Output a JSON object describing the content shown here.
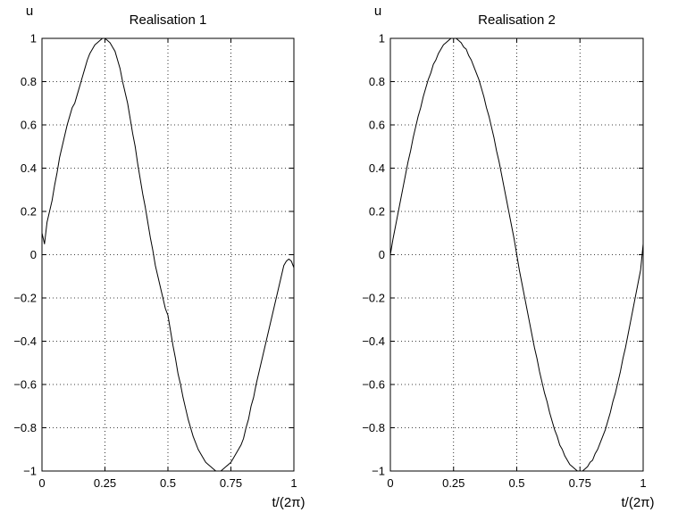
{
  "chart_data": [
    {
      "type": "line",
      "title": "Realisation 1",
      "xlabel": "t/(2π)",
      "ylabel": "u",
      "xlim": [
        0,
        1
      ],
      "ylim": [
        -1,
        1
      ],
      "x_ticks": [
        0,
        0.25,
        0.5,
        0.75,
        1
      ],
      "x_tick_labels": [
        "0",
        "0.25",
        "0.5",
        "0.75",
        "1"
      ],
      "y_ticks": [
        -1,
        -0.8,
        -0.6,
        -0.4,
        -0.2,
        0,
        0.2,
        0.4,
        0.6,
        0.8,
        1
      ],
      "y_tick_labels": [
        "−1",
        "−0.8",
        "−0.6",
        "−0.4",
        "−0.2",
        "0",
        "0.2",
        "0.4",
        "0.6",
        "0.8",
        "1"
      ],
      "grid": true,
      "series": [
        {
          "x": [
            0,
            0.01,
            0.02,
            0.03,
            0.04,
            0.05,
            0.06,
            0.07,
            0.08,
            0.09,
            0.1,
            0.11,
            0.12,
            0.13,
            0.14,
            0.15,
            0.16,
            0.17,
            0.18,
            0.19,
            0.2,
            0.21,
            0.22,
            0.23,
            0.24,
            0.25,
            0.26,
            0.27,
            0.28,
            0.29,
            0.3,
            0.31,
            0.32,
            0.33,
            0.34,
            0.35,
            0.36,
            0.37,
            0.38,
            0.39,
            0.4,
            0.41,
            0.42,
            0.43,
            0.44,
            0.45,
            0.46,
            0.47,
            0.48,
            0.49,
            0.5,
            0.51,
            0.52,
            0.53,
            0.54,
            0.55,
            0.56,
            0.57,
            0.58,
            0.59,
            0.6,
            0.61,
            0.62,
            0.63,
            0.64,
            0.65,
            0.66,
            0.67,
            0.68,
            0.69,
            0.7,
            0.71,
            0.72,
            0.73,
            0.74,
            0.75,
            0.76,
            0.77,
            0.78,
            0.79,
            0.8,
            0.81,
            0.82,
            0.83,
            0.84,
            0.85,
            0.86,
            0.87,
            0.88,
            0.89,
            0.9,
            0.91,
            0.92,
            0.93,
            0.94,
            0.95,
            0.96,
            0.97,
            0.98,
            0.99,
            1.0
          ],
          "y": [
            0.1,
            0.05,
            0.15,
            0.2,
            0.25,
            0.32,
            0.38,
            0.45,
            0.5,
            0.55,
            0.6,
            0.64,
            0.68,
            0.7,
            0.74,
            0.78,
            0.82,
            0.86,
            0.9,
            0.93,
            0.95,
            0.97,
            0.98,
            0.99,
            1.0,
            1.0,
            0.99,
            0.98,
            0.96,
            0.94,
            0.9,
            0.86,
            0.8,
            0.75,
            0.7,
            0.63,
            0.56,
            0.5,
            0.42,
            0.35,
            0.28,
            0.22,
            0.15,
            0.08,
            0.02,
            -0.05,
            -0.1,
            -0.15,
            -0.2,
            -0.25,
            -0.28,
            -0.35,
            -0.42,
            -0.48,
            -0.55,
            -0.6,
            -0.66,
            -0.71,
            -0.76,
            -0.8,
            -0.84,
            -0.87,
            -0.9,
            -0.92,
            -0.94,
            -0.96,
            -0.97,
            -0.98,
            -0.99,
            -1.0,
            -1.0,
            -1.0,
            -0.99,
            -0.98,
            -0.97,
            -0.96,
            -0.94,
            -0.92,
            -0.9,
            -0.88,
            -0.85,
            -0.8,
            -0.76,
            -0.7,
            -0.66,
            -0.6,
            -0.55,
            -0.5,
            -0.45,
            -0.4,
            -0.35,
            -0.3,
            -0.25,
            -0.2,
            -0.15,
            -0.1,
            -0.05,
            -0.03,
            -0.02,
            -0.03,
            -0.06
          ]
        }
      ]
    },
    {
      "type": "line",
      "title": "Realisation 2",
      "xlabel": "t/(2π)",
      "ylabel": "u",
      "xlim": [
        0,
        1
      ],
      "ylim": [
        -1,
        1
      ],
      "x_ticks": [
        0,
        0.25,
        0.5,
        0.75,
        1
      ],
      "x_tick_labels": [
        "0",
        "0.25",
        "0.5",
        "0.75",
        "1"
      ],
      "y_ticks": [
        -1,
        -0.8,
        -0.6,
        -0.4,
        -0.2,
        0,
        0.2,
        0.4,
        0.6,
        0.8,
        1
      ],
      "y_tick_labels": [
        "−1",
        "−0.8",
        "−0.6",
        "−0.4",
        "−0.2",
        "0",
        "0.2",
        "0.4",
        "0.6",
        "0.8",
        "1"
      ],
      "grid": true,
      "series": [
        {
          "x": [
            0,
            0.01,
            0.02,
            0.03,
            0.04,
            0.05,
            0.06,
            0.07,
            0.08,
            0.09,
            0.1,
            0.11,
            0.12,
            0.13,
            0.14,
            0.15,
            0.16,
            0.17,
            0.18,
            0.19,
            0.2,
            0.21,
            0.22,
            0.23,
            0.24,
            0.25,
            0.26,
            0.27,
            0.28,
            0.29,
            0.3,
            0.31,
            0.32,
            0.33,
            0.34,
            0.35,
            0.36,
            0.37,
            0.38,
            0.39,
            0.4,
            0.41,
            0.42,
            0.43,
            0.44,
            0.45,
            0.46,
            0.47,
            0.48,
            0.49,
            0.5,
            0.51,
            0.52,
            0.53,
            0.54,
            0.55,
            0.56,
            0.57,
            0.58,
            0.59,
            0.6,
            0.61,
            0.62,
            0.63,
            0.64,
            0.65,
            0.66,
            0.67,
            0.68,
            0.69,
            0.7,
            0.71,
            0.72,
            0.73,
            0.74,
            0.75,
            0.76,
            0.77,
            0.78,
            0.79,
            0.8,
            0.81,
            0.82,
            0.83,
            0.84,
            0.85,
            0.86,
            0.87,
            0.88,
            0.89,
            0.9,
            0.91,
            0.92,
            0.93,
            0.94,
            0.95,
            0.96,
            0.97,
            0.98,
            0.99,
            1.0
          ],
          "y": [
            0.0,
            0.07,
            0.13,
            0.19,
            0.25,
            0.31,
            0.37,
            0.43,
            0.48,
            0.54,
            0.59,
            0.64,
            0.68,
            0.73,
            0.77,
            0.81,
            0.84,
            0.88,
            0.9,
            0.93,
            0.95,
            0.97,
            0.98,
            0.99,
            1.0,
            1.0,
            1.0,
            0.99,
            0.98,
            0.96,
            0.95,
            0.92,
            0.9,
            0.87,
            0.84,
            0.81,
            0.77,
            0.73,
            0.68,
            0.64,
            0.59,
            0.54,
            0.48,
            0.43,
            0.37,
            0.31,
            0.25,
            0.19,
            0.13,
            0.07,
            0.0,
            -0.07,
            -0.13,
            -0.19,
            -0.25,
            -0.31,
            -0.37,
            -0.43,
            -0.48,
            -0.54,
            -0.59,
            -0.64,
            -0.68,
            -0.73,
            -0.77,
            -0.81,
            -0.84,
            -0.88,
            -0.9,
            -0.93,
            -0.95,
            -0.97,
            -0.98,
            -0.99,
            -1.0,
            -1.0,
            -1.0,
            -0.99,
            -0.98,
            -0.96,
            -0.95,
            -0.92,
            -0.9,
            -0.87,
            -0.84,
            -0.81,
            -0.77,
            -0.73,
            -0.68,
            -0.64,
            -0.59,
            -0.54,
            -0.48,
            -0.43,
            -0.37,
            -0.31,
            -0.25,
            -0.19,
            -0.13,
            -0.07,
            0.05
          ]
        }
      ]
    }
  ]
}
